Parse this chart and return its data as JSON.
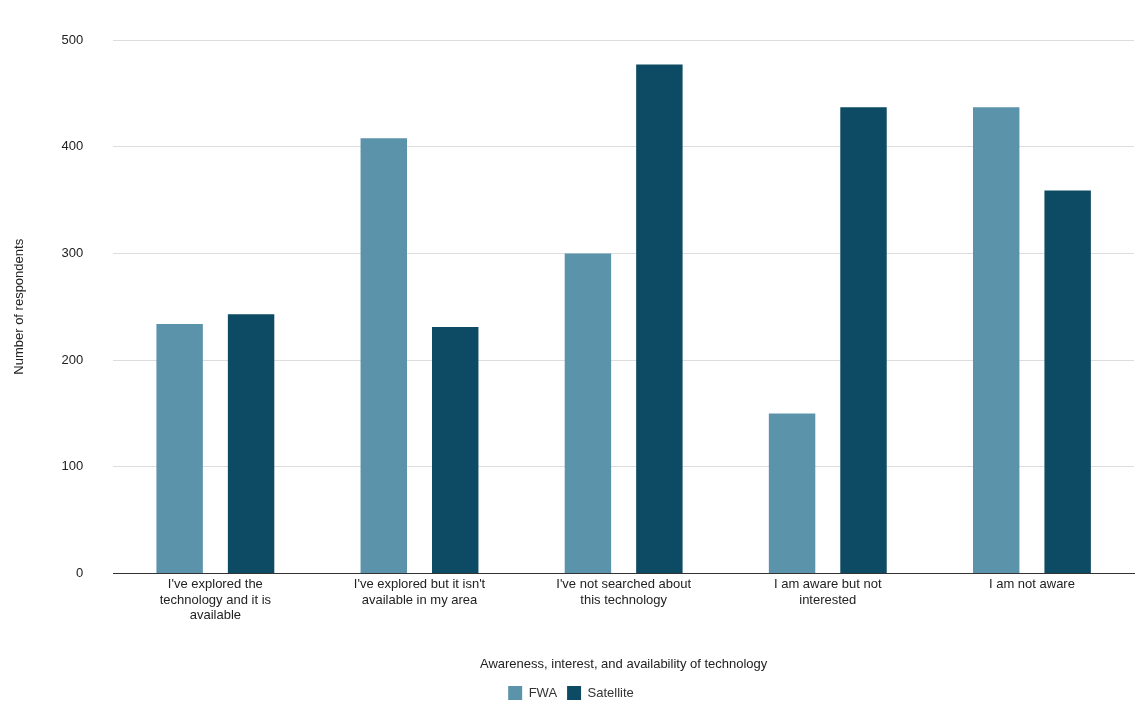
{
  "chart_data": {
    "type": "bar",
    "xlabel": "Awareness, interest, and availability of technology",
    "ylabel": "Number of respondents",
    "categories": [
      "I've explored the technology and it is available",
      "I've explored but it isn't available in my area",
      "I've not searched about this technology",
      "I am aware but not interested",
      "I am not aware"
    ],
    "series": [
      {
        "name": "FWA",
        "color": "#5b93ab",
        "values": [
          234,
          408,
          300,
          150,
          437
        ]
      },
      {
        "name": "Satellite",
        "color": "#0d4a63",
        "values": [
          243,
          231,
          477,
          437,
          359
        ]
      }
    ],
    "ylim": [
      0,
      500
    ],
    "yticks": [
      0,
      100,
      200,
      300,
      400,
      500
    ],
    "grid": "y",
    "legend": "bottom"
  }
}
